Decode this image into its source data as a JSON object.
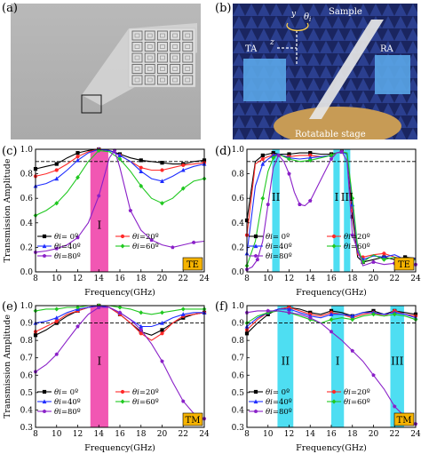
{
  "panels": {
    "a": {
      "letter": "(a)"
    },
    "b": {
      "letter": "(b)",
      "labels": {
        "y": "y",
        "theta": "θ",
        "theta_sub": "i",
        "sample": "Sample",
        "ta": "TA",
        "z": "z",
        "ra": "RA",
        "stage": "Rotatable stage"
      }
    },
    "c": {
      "letter": "(c)"
    },
    "d": {
      "letter": "(d)"
    },
    "e": {
      "letter": "(e)"
    },
    "f": {
      "letter": "(f)"
    }
  },
  "colors": {
    "magenta_band": "#ee3aa6",
    "cyan_band": "#2fd8f0",
    "black": "#000000",
    "red": "#ff2a2a",
    "blue": "#1f2dff",
    "green": "#20c820",
    "purple": "#8a20c8",
    "badge": "#f6b300"
  },
  "legend": [
    {
      "sym": "θi",
      "eq": "= 0º",
      "color": "#000000",
      "marker": "square"
    },
    {
      "sym": "θi",
      "eq": "=20º",
      "color": "#ff2a2a",
      "marker": "circle"
    },
    {
      "sym": "θi",
      "eq": "=40º",
      "color": "#1f2dff",
      "marker": "triangle"
    },
    {
      "sym": "θi",
      "eq": "=60º",
      "color": "#20c820",
      "marker": "diamond"
    },
    {
      "sym": "θi",
      "eq": "=80º",
      "color": "#8a20c8",
      "marker": "pentagon"
    }
  ],
  "chart_data": [
    {
      "id": "c",
      "type": "line",
      "badge": "TE",
      "xlabel": "Frequency(GHz)",
      "ylabel": "Transmission Amplitude",
      "xlim": [
        8,
        24
      ],
      "ylim": [
        0.0,
        1.0
      ],
      "xticks": [
        8,
        10,
        12,
        14,
        16,
        18,
        20,
        22,
        24
      ],
      "yticks": [
        0.0,
        0.2,
        0.4,
        0.6,
        0.8,
        1.0
      ],
      "reference_line": 0.9,
      "bands": [
        {
          "from": 13.2,
          "to": 14.9,
          "label": "I",
          "color": "magenta"
        }
      ],
      "band_label_y": 0.35,
      "series": [
        {
          "name": "θi= 0º",
          "x": [
            8,
            9,
            10,
            11,
            12,
            13,
            14,
            15,
            16,
            17,
            18,
            19,
            20,
            21,
            22,
            23,
            24
          ],
          "y": [
            0.84,
            0.86,
            0.88,
            0.93,
            0.97,
            0.99,
            1.0,
            0.99,
            0.96,
            0.93,
            0.91,
            0.9,
            0.89,
            0.88,
            0.88,
            0.9,
            0.91
          ]
        },
        {
          "name": "θi=20º",
          "x": [
            8,
            9,
            10,
            11,
            12,
            13,
            14,
            15,
            16,
            17,
            18,
            19,
            20,
            21,
            22,
            23,
            24
          ],
          "y": [
            0.78,
            0.8,
            0.83,
            0.88,
            0.94,
            0.98,
            1.0,
            0.99,
            0.95,
            0.9,
            0.85,
            0.83,
            0.83,
            0.85,
            0.87,
            0.88,
            0.89
          ]
        },
        {
          "name": "θi=40º",
          "x": [
            8,
            9,
            10,
            11,
            12,
            13,
            14,
            15,
            16,
            17,
            18,
            19,
            20,
            21,
            22,
            23,
            24
          ],
          "y": [
            0.7,
            0.72,
            0.76,
            0.83,
            0.91,
            0.97,
            1.0,
            0.99,
            0.95,
            0.9,
            0.82,
            0.76,
            0.74,
            0.78,
            0.83,
            0.86,
            0.88
          ]
        },
        {
          "name": "θi=60º",
          "x": [
            8,
            9,
            10,
            11,
            12,
            13,
            14,
            15,
            16,
            17,
            18,
            19,
            20,
            21,
            22,
            23,
            24
          ],
          "y": [
            0.46,
            0.5,
            0.56,
            0.65,
            0.77,
            0.9,
            0.99,
            0.98,
            0.92,
            0.82,
            0.7,
            0.6,
            0.56,
            0.6,
            0.68,
            0.74,
            0.76
          ]
        },
        {
          "name": "θi=80º",
          "x": [
            8,
            9,
            10,
            11,
            12,
            13,
            14,
            15,
            15.5,
            16,
            17,
            18,
            19,
            20,
            21,
            22,
            23,
            24
          ],
          "y": [
            0.16,
            0.17,
            0.19,
            0.22,
            0.28,
            0.4,
            0.62,
            0.93,
            0.99,
            0.85,
            0.5,
            0.34,
            0.26,
            0.22,
            0.2,
            0.22,
            0.24,
            0.25
          ]
        }
      ]
    },
    {
      "id": "d",
      "type": "line",
      "badge": "TE",
      "xlabel": "Frequency(GHz)",
      "ylabel": "",
      "xlim": [
        8,
        24
      ],
      "ylim": [
        0.0,
        1.0
      ],
      "xticks": [
        8,
        10,
        12,
        14,
        16,
        18,
        20,
        22,
        24
      ],
      "yticks": [
        0.0,
        0.2,
        0.4,
        0.6,
        0.8,
        1.0
      ],
      "reference_line": 0.9,
      "bands": [
        {
          "from": 10.4,
          "to": 11.1,
          "label": "II",
          "color": "cyan"
        },
        {
          "from": 16.2,
          "to": 16.8,
          "label": "I",
          "color": "cyan"
        },
        {
          "from": 17.2,
          "to": 17.8,
          "label": "III",
          "color": "cyan"
        }
      ],
      "band_label_y": 0.58,
      "series": [
        {
          "name": "θi= 0º",
          "x": [
            8,
            8.8,
            9.5,
            10,
            10.5,
            11,
            12,
            13,
            14,
            15,
            16,
            16.5,
            17,
            17.5,
            18,
            18.5,
            19,
            20,
            21,
            22,
            23,
            24
          ],
          "y": [
            0.42,
            0.9,
            0.95,
            0.96,
            0.97,
            0.96,
            0.96,
            0.97,
            0.97,
            0.96,
            0.96,
            0.97,
            0.98,
            0.96,
            0.45,
            0.12,
            0.08,
            0.1,
            0.12,
            0.1,
            0.12,
            0.11
          ]
        },
        {
          "name": "θi=20º",
          "x": [
            8,
            8.8,
            9.5,
            10,
            10.5,
            11,
            12,
            13,
            14,
            15,
            16,
            16.5,
            17,
            17.5,
            18,
            18.5,
            19,
            20,
            21,
            22,
            23,
            24
          ],
          "y": [
            0.3,
            0.88,
            0.92,
            0.94,
            0.95,
            0.95,
            0.94,
            0.95,
            0.95,
            0.94,
            0.95,
            0.97,
            0.98,
            0.96,
            0.5,
            0.14,
            0.12,
            0.14,
            0.15,
            0.12,
            0.1,
            0.1
          ]
        },
        {
          "name": "θi=40º",
          "x": [
            8,
            8.8,
            9.5,
            10,
            10.5,
            11,
            12,
            13,
            14,
            15,
            16,
            16.5,
            17,
            17.5,
            18,
            18.5,
            19,
            20,
            21,
            22,
            23,
            24
          ],
          "y": [
            0.15,
            0.7,
            0.88,
            0.92,
            0.95,
            0.96,
            0.93,
            0.92,
            0.93,
            0.94,
            0.95,
            0.97,
            0.98,
            0.96,
            0.55,
            0.16,
            0.1,
            0.13,
            0.12,
            0.14,
            0.1,
            0.11
          ]
        },
        {
          "name": "θi=60º",
          "x": [
            8,
            8.8,
            9.5,
            10,
            10.5,
            11,
            12,
            13,
            14,
            15,
            16,
            16.5,
            17,
            17.5,
            18,
            18.5,
            19,
            20,
            21,
            22,
            23,
            24
          ],
          "y": [
            0.05,
            0.25,
            0.6,
            0.82,
            0.93,
            0.96,
            0.92,
            0.9,
            0.91,
            0.93,
            0.95,
            0.97,
            0.98,
            0.97,
            0.6,
            0.2,
            0.08,
            0.14,
            0.1,
            0.12,
            0.08,
            0.1
          ]
        },
        {
          "name": "θi=80º",
          "x": [
            8,
            8.5,
            9,
            9.5,
            10,
            10.5,
            11,
            11.5,
            12,
            12.5,
            13,
            13.5,
            14,
            15,
            16,
            16.5,
            17,
            17.5,
            18,
            19,
            20,
            21,
            22,
            23,
            24
          ],
          "y": [
            0.02,
            0.04,
            0.1,
            0.25,
            0.55,
            0.85,
            0.95,
            0.9,
            0.8,
            0.65,
            0.55,
            0.54,
            0.58,
            0.75,
            0.92,
            0.97,
            0.98,
            0.9,
            0.3,
            0.05,
            0.08,
            0.06,
            0.07,
            0.05,
            0.06
          ]
        }
      ]
    },
    {
      "id": "e",
      "type": "line",
      "badge": "TM",
      "xlabel": "Frequency(GHz)",
      "ylabel": "Transmission Amplitude",
      "xlim": [
        8,
        24
      ],
      "ylim": [
        0.3,
        1.0
      ],
      "xticks": [
        8,
        10,
        12,
        14,
        16,
        18,
        20,
        22,
        24
      ],
      "yticks": [
        0.3,
        0.4,
        0.5,
        0.6,
        0.7,
        0.8,
        0.9,
        1.0
      ],
      "reference_line": 0.9,
      "bands": [
        {
          "from": 13.2,
          "to": 14.9,
          "label": "I",
          "color": "magenta"
        }
      ],
      "band_label_y": 0.66,
      "series": [
        {
          "name": "θi= 0º",
          "x": [
            8,
            9,
            10,
            11,
            12,
            13,
            14,
            15,
            16,
            17,
            18,
            19,
            20,
            21,
            22,
            23,
            24
          ],
          "y": [
            0.83,
            0.86,
            0.9,
            0.94,
            0.97,
            0.99,
            1.0,
            0.99,
            0.95,
            0.9,
            0.85,
            0.83,
            0.86,
            0.9,
            0.93,
            0.95,
            0.96
          ]
        },
        {
          "name": "θi=20º",
          "x": [
            8,
            9,
            10,
            11,
            12,
            13,
            14,
            15,
            16,
            17,
            18,
            19,
            20,
            21,
            22,
            23,
            24
          ],
          "y": [
            0.85,
            0.88,
            0.91,
            0.95,
            0.97,
            0.99,
            1.0,
            0.99,
            0.95,
            0.9,
            0.84,
            0.8,
            0.84,
            0.9,
            0.94,
            0.95,
            0.96
          ]
        },
        {
          "name": "θi=40º",
          "x": [
            8,
            9,
            10,
            11,
            12,
            13,
            14,
            15,
            16,
            17,
            18,
            19,
            20,
            21,
            22,
            23,
            24
          ],
          "y": [
            0.9,
            0.91,
            0.93,
            0.96,
            0.98,
            0.99,
            1.0,
            0.99,
            0.96,
            0.92,
            0.88,
            0.88,
            0.9,
            0.93,
            0.95,
            0.96,
            0.96
          ]
        },
        {
          "name": "θi=60º",
          "x": [
            8,
            9,
            10,
            11,
            12,
            13,
            14,
            15,
            16,
            17,
            18,
            19,
            20,
            21,
            22,
            23,
            24
          ],
          "y": [
            0.97,
            0.98,
            0.98,
            0.99,
            0.99,
            1.0,
            1.0,
            1.0,
            0.99,
            0.98,
            0.96,
            0.95,
            0.96,
            0.97,
            0.98,
            0.98,
            0.98
          ]
        },
        {
          "name": "θi=80º",
          "x": [
            8,
            9,
            10,
            11,
            12,
            13,
            14,
            15,
            16,
            17,
            18,
            19,
            20,
            21,
            22,
            23,
            24
          ],
          "y": [
            0.62,
            0.66,
            0.72,
            0.8,
            0.88,
            0.95,
            0.99,
            0.99,
            0.96,
            0.92,
            0.86,
            0.78,
            0.68,
            0.56,
            0.45,
            0.38,
            0.35
          ]
        }
      ]
    },
    {
      "id": "f",
      "type": "line",
      "badge": "TM",
      "xlabel": "Frequency(GHz)",
      "ylabel": "",
      "xlim": [
        8,
        24
      ],
      "ylim": [
        0.3,
        1.0
      ],
      "xticks": [
        8,
        10,
        12,
        14,
        16,
        18,
        20,
        22,
        24
      ],
      "yticks": [
        0.3,
        0.4,
        0.5,
        0.6,
        0.7,
        0.8,
        0.9,
        1.0
      ],
      "reference_line": 0.9,
      "bands": [
        {
          "from": 10.9,
          "to": 12.4,
          "label": "II",
          "color": "cyan"
        },
        {
          "from": 16.0,
          "to": 17.2,
          "label": "I",
          "color": "cyan"
        },
        {
          "from": 21.6,
          "to": 22.9,
          "label": "III",
          "color": "cyan"
        }
      ],
      "band_label_y": 0.66,
      "series": [
        {
          "name": "θi= 0º",
          "x": [
            8,
            9,
            10,
            11,
            12,
            13,
            14,
            15,
            16,
            17,
            18,
            19,
            20,
            21,
            22,
            23,
            24
          ],
          "y": [
            0.84,
            0.9,
            0.95,
            0.98,
            0.99,
            0.98,
            0.96,
            0.95,
            0.97,
            0.96,
            0.94,
            0.96,
            0.97,
            0.95,
            0.97,
            0.96,
            0.95
          ]
        },
        {
          "name": "θi=20º",
          "x": [
            8,
            9,
            10,
            11,
            12,
            13,
            14,
            15,
            16,
            17,
            18,
            19,
            20,
            21,
            22,
            23,
            24
          ],
          "y": [
            0.86,
            0.92,
            0.96,
            0.98,
            0.99,
            0.97,
            0.95,
            0.94,
            0.96,
            0.95,
            0.93,
            0.95,
            0.96,
            0.94,
            0.97,
            0.95,
            0.94
          ]
        },
        {
          "name": "θi=40º",
          "x": [
            8,
            9,
            10,
            11,
            12,
            13,
            14,
            15,
            16,
            17,
            18,
            19,
            20,
            21,
            22,
            23,
            24
          ],
          "y": [
            0.88,
            0.93,
            0.96,
            0.98,
            0.98,
            0.96,
            0.94,
            0.93,
            0.95,
            0.95,
            0.94,
            0.96,
            0.96,
            0.95,
            0.96,
            0.95,
            0.93
          ]
        },
        {
          "name": "θi=60º",
          "x": [
            8,
            9,
            10,
            11,
            12,
            13,
            14,
            15,
            16,
            17,
            18,
            19,
            20,
            21,
            22,
            23,
            24
          ],
          "y": [
            0.9,
            0.94,
            0.96,
            0.97,
            0.96,
            0.94,
            0.92,
            0.9,
            0.92,
            0.93,
            0.92,
            0.94,
            0.95,
            0.94,
            0.95,
            0.94,
            0.92
          ]
        },
        {
          "name": "θi=80º",
          "x": [
            8,
            9,
            10,
            11,
            12,
            13,
            14,
            15,
            16,
            17,
            18,
            19,
            20,
            21,
            22,
            23,
            24
          ],
          "y": [
            0.96,
            0.97,
            0.97,
            0.97,
            0.96,
            0.95,
            0.93,
            0.9,
            0.85,
            0.8,
            0.74,
            0.68,
            0.6,
            0.52,
            0.42,
            0.36,
            0.32
          ]
        }
      ]
    }
  ]
}
